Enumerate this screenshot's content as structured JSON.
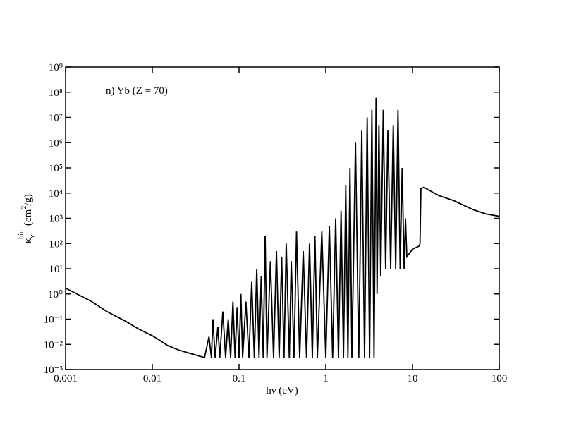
{
  "chart_data": {
    "type": "line",
    "annotation": "n) Yb (Z = 70)",
    "xlabel": "hν (eV)",
    "ylabel": {
      "symbol": "κ",
      "sub": "ν",
      "sup": "bin",
      "unit_start": "(cm",
      "unit_sup": "2",
      "unit_end": "/g)"
    },
    "log_x": true,
    "log_y": true,
    "grid": false,
    "xlim": [
      0.001,
      100
    ],
    "xticks": [
      0.001,
      0.01,
      0.1,
      1,
      10,
      100
    ],
    "ylim": [
      0.001,
      1000000000
    ],
    "yticks": [
      {
        "value": 1000000000,
        "label": "10⁹"
      },
      {
        "value": 100000000,
        "label": "10⁸"
      },
      {
        "value": 10000000,
        "label": "10⁷"
      },
      {
        "value": 1000000,
        "label": "10⁶"
      },
      {
        "value": 100000,
        "label": "10⁵"
      },
      {
        "value": 10000,
        "label": "10⁴"
      },
      {
        "value": 1000,
        "label": "10³"
      },
      {
        "value": 100,
        "label": "10²"
      },
      {
        "value": 10,
        "label": "10¹"
      },
      {
        "value": 1,
        "label": "10⁰"
      },
      {
        "value": 0.1,
        "label": "10⁻¹"
      },
      {
        "value": 0.01,
        "label": "10⁻²"
      },
      {
        "value": 0.001,
        "label": "10⁻³"
      }
    ],
    "series": [
      {
        "color": "#000000",
        "x": [
          0.001,
          0.002,
          0.003,
          0.005,
          0.007,
          0.01,
          0.012,
          0.015,
          0.02,
          0.03,
          0.04,
          0.045,
          0.048,
          0.05,
          0.053,
          0.057,
          0.06,
          0.065,
          0.07,
          0.075,
          0.08,
          0.085,
          0.09,
          0.095,
          0.1,
          0.105,
          0.11,
          0.12,
          0.13,
          0.14,
          0.15,
          0.16,
          0.17,
          0.18,
          0.19,
          0.2,
          0.21,
          0.23,
          0.25,
          0.27,
          0.29,
          0.31,
          0.33,
          0.35,
          0.38,
          0.4,
          0.43,
          0.46,
          0.5,
          0.55,
          0.6,
          0.65,
          0.7,
          0.75,
          0.8,
          0.9,
          1.0,
          1.1,
          1.2,
          1.3,
          1.4,
          1.5,
          1.6,
          1.7,
          1.8,
          1.9,
          2.0,
          2.2,
          2.4,
          2.6,
          2.8,
          3.0,
          3.2,
          3.4,
          3.6,
          3.8,
          3.9,
          4.1,
          4.3,
          4.6,
          4.9,
          5.2,
          5.6,
          6.0,
          6.4,
          6.8,
          7.2,
          7.6,
          8.0,
          8.3,
          8.6,
          10,
          12,
          12.2,
          12.5,
          13.5,
          20,
          30,
          50,
          70,
          100
        ],
        "values": [
          1.7,
          0.5,
          0.2,
          0.08,
          0.04,
          0.022,
          0.015,
          0.009,
          0.006,
          0.004,
          0.003,
          0.02,
          0.003,
          0.1,
          0.003,
          0.05,
          0.003,
          0.2,
          0.003,
          0.1,
          0.003,
          0.5,
          0.003,
          0.3,
          0.003,
          1,
          0.003,
          0.5,
          0.003,
          3,
          0.003,
          10,
          0.003,
          5,
          0.003,
          200,
          0.003,
          20,
          0.003,
          50,
          0.003,
          30,
          0.003,
          100,
          0.003,
          20,
          0.003,
          300,
          0.003,
          50,
          0.003,
          100,
          0.003,
          200,
          0.003,
          300,
          0.003,
          500,
          0.003,
          1000,
          0.003,
          2000,
          0.003,
          20000,
          0.003,
          100000,
          0.003,
          1000000,
          0.003,
          3000000,
          0.003,
          10000000,
          0.003,
          20000000,
          0.003,
          60000000,
          1,
          5000000,
          5,
          20000000,
          10,
          3000000,
          10,
          5000000,
          10,
          20000000,
          10,
          100000,
          10,
          1000,
          30,
          60,
          80,
          100,
          15000,
          17000,
          8000,
          5000,
          2200,
          1500,
          1200
        ]
      }
    ]
  }
}
